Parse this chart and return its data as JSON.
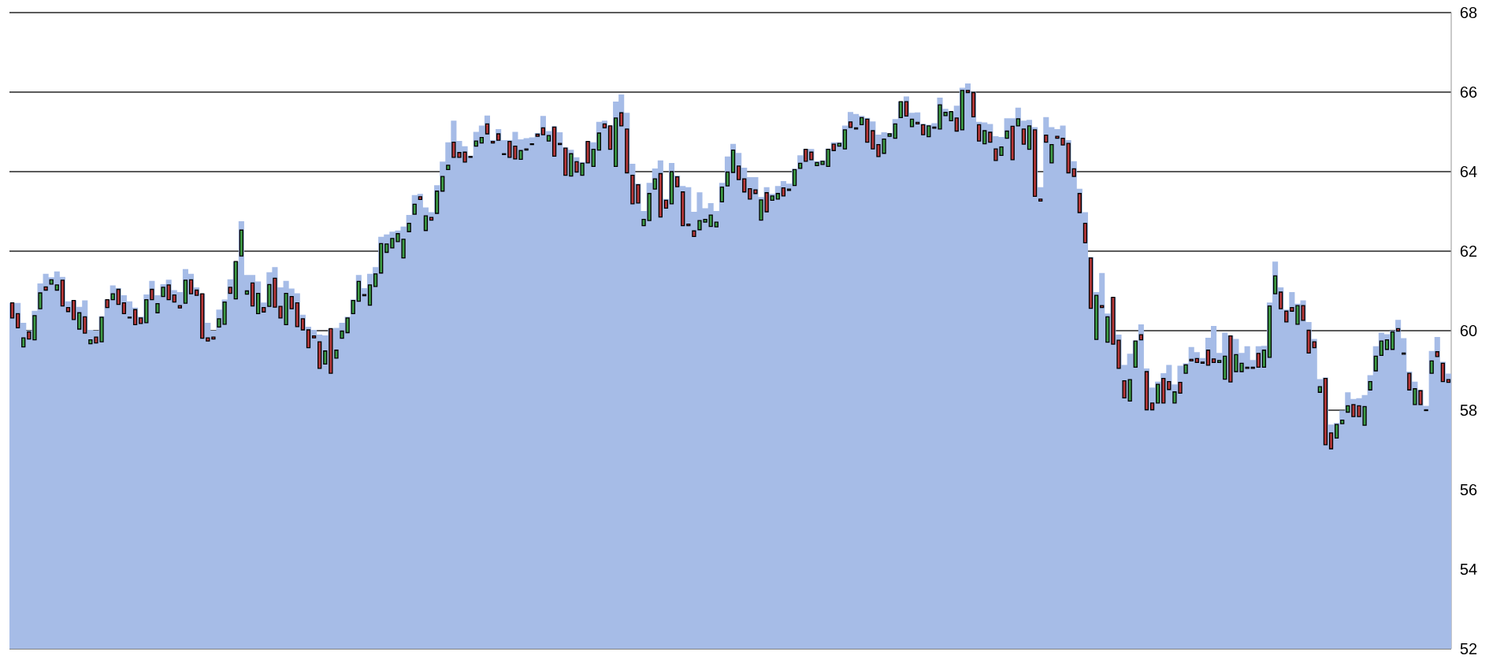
{
  "chart_data": {
    "type": "candlestick",
    "categories": [
      null,
      null,
      null,
      null,
      null,
      null,
      null,
      null,
      null,
      null,
      null,
      null,
      null,
      null,
      null,
      null,
      null,
      null,
      null,
      null,
      null,
      null,
      null,
      null,
      null,
      null,
      null,
      null,
      null,
      null,
      null,
      null,
      null,
      null,
      null,
      null,
      null,
      null,
      null,
      null,
      null,
      null,
      null,
      null,
      null,
      null,
      null,
      null,
      null,
      null,
      null,
      null,
      null,
      null,
      null,
      null,
      null,
      null,
      null,
      null,
      null,
      null,
      null,
      null,
      null,
      null,
      null,
      null,
      null,
      null,
      null,
      null,
      null,
      null,
      null,
      null,
      null,
      null,
      null,
      null,
      null,
      null,
      null,
      null,
      null,
      null,
      null,
      null,
      null,
      null,
      null,
      null,
      null,
      null,
      null,
      null,
      null,
      null,
      null,
      null,
      null,
      null,
      null,
      null,
      null,
      null,
      null,
      null,
      null,
      null,
      null,
      null,
      null,
      null,
      null,
      null,
      null,
      null,
      null,
      null,
      null,
      null,
      null,
      null,
      null,
      null,
      null,
      null,
      null,
      null,
      null,
      null,
      null,
      null,
      null,
      null,
      null,
      null,
      null,
      null,
      null,
      null,
      null,
      null,
      null,
      null,
      null,
      null,
      null,
      null,
      null,
      null,
      null,
      null,
      null,
      null,
      null,
      null,
      null,
      null,
      null,
      null,
      null,
      null,
      null,
      null,
      null,
      null,
      null,
      null,
      null,
      null,
      null,
      null,
      null,
      null,
      null,
      null,
      null,
      null,
      null,
      null,
      null,
      null,
      null,
      null,
      null,
      null,
      null,
      null,
      null,
      null,
      null,
      null,
      null,
      null,
      null,
      null,
      null,
      null,
      null,
      null,
      null,
      null,
      null,
      null,
      null,
      null,
      null,
      null,
      null,
      null,
      null,
      null,
      null,
      null,
      null,
      null,
      null,
      null,
      null,
      null,
      null,
      null,
      null,
      null,
      null,
      null,
      null,
      null,
      null,
      null,
      null,
      null,
      null,
      null,
      null,
      null,
      null,
      null,
      null,
      null,
      null,
      null,
      null,
      null,
      null,
      null,
      null,
      null,
      null,
      null,
      null,
      null,
      null,
      null,
      null,
      null
    ],
    "series": [
      {
        "type": "area",
        "color": "#a6bce7",
        "values": [
          60.7,
          60.7,
          60.2,
          60.0,
          60.5,
          61.19,
          61.43,
          61.34,
          61.49,
          61.35,
          60.74,
          60.76,
          60.6,
          60.76,
          60.02,
          60.0,
          60.36,
          60.78,
          61.14,
          61.07,
          60.89,
          60.74,
          60.58,
          60.35,
          60.91,
          61.25,
          60.89,
          61.17,
          61.28,
          61.02,
          60.97,
          61.55,
          61.43,
          61.09,
          60.93,
          60.2,
          60.0,
          60.53,
          60.78,
          61.29,
          61.74,
          62.75,
          61.4,
          61.4,
          61.24,
          60.71,
          61.47,
          61.6,
          61.09,
          61.25,
          61.06,
          60.94,
          60.4,
          60.1,
          60.02,
          59.9,
          59.88,
          60.05,
          60.07,
          60.2,
          60.35,
          60.78,
          61.4,
          61.07,
          61.43,
          61.6,
          62.36,
          62.42,
          62.49,
          62.52,
          62.62,
          62.91,
          63.41,
          63.44,
          63.1,
          62.98,
          63.66,
          64.25,
          64.74,
          65.28,
          64.77,
          64.64,
          64.4,
          65.0,
          65.16,
          65.41,
          64.79,
          65.07,
          64.79,
          64.79,
          65.0,
          64.81,
          64.84,
          64.86,
          64.97,
          65.4,
          65.02,
          65.14,
          64.99,
          64.61,
          64.55,
          64.36,
          64.24,
          64.76,
          64.74,
          65.25,
          65.28,
          65.16,
          65.76,
          65.94,
          65.48,
          64.2,
          63.7,
          63.01,
          63.72,
          64.08,
          64.28,
          63.31,
          64.22,
          63.9,
          63.64,
          63.61,
          62.99,
          63.48,
          63.08,
          63.21,
          63.01,
          63.72,
          64.38,
          64.7,
          64.47,
          64.1,
          63.86,
          63.86,
          63.36,
          63.61,
          63.44,
          63.64,
          63.76,
          63.7,
          64.07,
          64.41,
          64.57,
          64.57,
          64.26,
          64.28,
          64.58,
          64.74,
          64.74,
          65.16,
          65.5,
          65.45,
          65.4,
          65.35,
          65.26,
          64.93,
          64.99,
          64.97,
          65.32,
          65.76,
          65.89,
          65.48,
          65.49,
          65.2,
          65.18,
          65.22,
          65.86,
          65.58,
          65.51,
          65.66,
          66.11,
          66.22,
          66.01,
          65.25,
          65.24,
          65.2,
          64.89,
          64.87,
          65.34,
          65.34,
          65.61,
          65.28,
          65.3,
          65.12,
          63.61,
          65.37,
          65.12,
          65.07,
          65.16,
          64.79,
          64.26,
          63.57,
          62.98,
          61.85,
          60.97,
          61.45,
          60.43,
          60.84,
          59.9,
          59.14,
          59.42,
          59.75,
          60.16,
          59.05,
          58.57,
          58.72,
          58.93,
          59.14,
          58.65,
          59.12,
          59.18,
          59.59,
          59.46,
          59.31,
          59.82,
          60.12,
          59.44,
          59.95,
          59.88,
          59.79,
          59.44,
          59.61,
          59.26,
          59.61,
          59.62,
          60.71,
          61.74,
          61.09,
          60.53,
          60.97,
          60.68,
          60.76,
          60.22,
          59.79,
          58.78,
          58.82,
          57.64,
          57.68,
          57.99,
          58.45,
          58.28,
          58.3,
          58.38,
          58.88,
          59.61,
          59.95,
          59.91,
          60.0,
          60.27,
          59.81,
          58.97,
          58.72,
          58.51,
          58.11,
          59.49,
          59.84,
          59.22,
          58.92
        ]
      }
    ],
    "ohlc": [
      [
        60.7,
        60.7,
        60.32,
        60.32
      ],
      [
        60.43,
        60.43,
        60.07,
        60.07
      ],
      [
        59.59,
        59.82,
        59.59,
        59.82
      ],
      [
        59.97,
        59.97,
        59.79,
        59.79
      ],
      [
        59.77,
        60.38,
        59.77,
        60.38
      ],
      [
        60.55,
        60.95,
        60.55,
        60.95
      ],
      [
        61.1,
        61.1,
        61.02,
        61.02
      ],
      [
        61.17,
        61.28,
        61.17,
        61.28
      ],
      [
        61.02,
        61.15,
        61.02,
        61.15
      ],
      [
        61.27,
        61.27,
        60.62,
        60.62
      ],
      [
        60.58,
        60.58,
        60.48,
        60.48
      ],
      [
        60.76,
        60.76,
        60.28,
        60.28
      ],
      [
        60.04,
        60.45,
        60.04,
        60.45
      ],
      [
        60.35,
        60.35,
        59.94,
        59.94
      ],
      [
        59.67,
        59.77,
        59.67,
        59.77
      ],
      [
        59.84,
        59.84,
        59.69,
        59.69
      ],
      [
        59.72,
        60.34,
        59.72,
        60.34
      ],
      [
        60.78,
        60.78,
        60.58,
        60.58
      ],
      [
        60.78,
        60.93,
        60.78,
        60.93
      ],
      [
        61.04,
        61.04,
        60.66,
        60.66
      ],
      [
        60.7,
        60.7,
        60.43,
        60.43
      ],
      [
        60.34,
        60.34,
        60.32,
        60.32
      ],
      [
        60.53,
        60.53,
        60.15,
        60.15
      ],
      [
        60.32,
        60.32,
        60.18,
        60.18
      ],
      [
        60.2,
        60.78,
        60.2,
        60.78
      ],
      [
        61.04,
        61.04,
        60.78,
        60.78
      ],
      [
        60.45,
        60.68,
        60.45,
        60.68
      ],
      [
        60.86,
        61.09,
        60.86,
        61.09
      ],
      [
        61.15,
        61.15,
        60.78,
        60.78
      ],
      [
        60.9,
        60.9,
        60.72,
        60.72
      ],
      [
        60.63,
        60.63,
        60.57,
        60.57
      ],
      [
        60.69,
        61.27,
        60.69,
        61.27
      ],
      [
        61.28,
        61.28,
        60.93,
        60.93
      ],
      [
        61.02,
        61.02,
        60.89,
        60.89
      ],
      [
        60.93,
        60.93,
        59.81,
        59.81
      ],
      [
        59.82,
        59.82,
        59.74,
        59.74
      ],
      [
        59.84,
        59.84,
        59.79,
        59.79
      ],
      [
        60.09,
        60.3,
        60.09,
        60.3
      ],
      [
        60.16,
        60.72,
        60.16,
        60.72
      ],
      [
        61.09,
        61.09,
        60.94,
        60.94
      ],
      [
        60.8,
        61.74,
        60.8,
        61.74
      ],
      [
        61.88,
        62.53,
        61.88,
        62.53
      ],
      [
        60.92,
        61.0,
        60.92,
        61.0
      ],
      [
        61.2,
        61.2,
        60.62,
        60.62
      ],
      [
        60.43,
        60.94,
        60.43,
        60.94
      ],
      [
        60.58,
        60.58,
        60.47,
        60.47
      ],
      [
        60.61,
        61.16,
        60.61,
        61.16
      ],
      [
        61.32,
        61.32,
        60.59,
        60.59
      ],
      [
        60.61,
        60.61,
        60.32,
        60.32
      ],
      [
        60.15,
        60.94,
        60.15,
        60.94
      ],
      [
        60.86,
        60.86,
        60.55,
        60.55
      ],
      [
        60.7,
        60.7,
        60.1,
        60.1
      ],
      [
        60.3,
        60.3,
        60.02,
        60.02
      ],
      [
        60.02,
        60.02,
        59.57,
        59.57
      ],
      [
        59.87,
        59.87,
        59.82,
        59.82
      ],
      [
        59.72,
        59.72,
        59.05,
        59.05
      ],
      [
        59.16,
        59.49,
        59.16,
        59.49
      ],
      [
        60.05,
        60.05,
        58.93,
        58.93
      ],
      [
        59.31,
        59.51,
        59.31,
        59.51
      ],
      [
        59.81,
        59.99,
        59.81,
        59.99
      ],
      [
        59.95,
        60.32,
        59.95,
        60.32
      ],
      [
        60.43,
        60.76,
        60.43,
        60.76
      ],
      [
        60.74,
        61.24,
        60.74,
        61.24
      ],
      [
        60.91,
        60.91,
        60.88,
        60.88
      ],
      [
        60.64,
        61.15,
        60.64,
        61.15
      ],
      [
        61.11,
        61.43,
        61.11,
        61.43
      ],
      [
        61.45,
        62.19,
        61.45,
        62.19
      ],
      [
        61.97,
        62.18,
        61.97,
        62.18
      ],
      [
        62.08,
        62.32,
        62.08,
        62.32
      ],
      [
        62.24,
        62.44,
        62.24,
        62.44
      ],
      [
        61.83,
        62.3,
        61.83,
        62.3
      ],
      [
        62.49,
        62.7,
        62.49,
        62.7
      ],
      [
        62.93,
        63.18,
        62.93,
        63.18
      ],
      [
        63.37,
        63.37,
        63.3,
        63.3
      ],
      [
        62.52,
        62.89,
        62.52,
        62.89
      ],
      [
        62.85,
        62.85,
        62.78,
        62.78
      ],
      [
        62.95,
        63.51,
        62.95,
        63.51
      ],
      [
        63.51,
        63.88,
        63.51,
        63.88
      ],
      [
        64.05,
        64.16,
        64.05,
        64.16
      ],
      [
        64.74,
        64.74,
        64.36,
        64.36
      ],
      [
        64.48,
        64.48,
        64.36,
        64.36
      ],
      [
        64.49,
        64.49,
        64.24,
        64.24
      ],
      [
        64.38,
        64.38,
        64.36,
        64.36
      ],
      [
        64.64,
        64.77,
        64.64,
        64.77
      ],
      [
        64.72,
        64.86,
        64.72,
        64.86
      ],
      [
        65.2,
        65.2,
        64.95,
        64.95
      ],
      [
        64.76,
        64.76,
        64.72,
        64.72
      ],
      [
        64.95,
        64.95,
        64.79,
        64.79
      ],
      [
        64.45,
        64.45,
        64.43,
        64.43
      ],
      [
        64.76,
        64.76,
        64.36,
        64.36
      ],
      [
        64.64,
        64.64,
        64.32,
        64.32
      ],
      [
        64.31,
        64.53,
        64.31,
        64.53
      ],
      [
        64.57,
        64.57,
        64.54,
        64.54
      ],
      [
        64.7,
        64.7,
        64.68,
        64.68
      ],
      [
        64.94,
        64.94,
        64.89,
        64.89
      ],
      [
        65.1,
        65.1,
        64.93,
        64.93
      ],
      [
        64.77,
        64.91,
        64.77,
        64.91
      ],
      [
        65.12,
        65.12,
        64.39,
        64.39
      ],
      [
        64.71,
        64.71,
        64.68,
        64.68
      ],
      [
        64.59,
        64.59,
        63.91,
        63.91
      ],
      [
        63.89,
        64.45,
        63.89,
        64.45
      ],
      [
        64.25,
        64.25,
        63.99,
        63.99
      ],
      [
        63.91,
        64.21,
        63.91,
        64.21
      ],
      [
        64.76,
        64.76,
        64.22,
        64.22
      ],
      [
        64.13,
        64.56,
        64.13,
        64.56
      ],
      [
        64.54,
        64.97,
        64.54,
        64.97
      ],
      [
        65.2,
        65.2,
        65.1,
        65.1
      ],
      [
        65.15,
        65.15,
        64.56,
        64.56
      ],
      [
        64.13,
        65.35,
        64.13,
        65.35
      ],
      [
        65.48,
        65.48,
        65.15,
        65.15
      ],
      [
        65.07,
        65.07,
        63.97,
        63.97
      ],
      [
        63.91,
        63.91,
        63.19,
        63.19
      ],
      [
        63.67,
        63.67,
        63.21,
        63.21
      ],
      [
        62.64,
        62.8,
        62.64,
        62.8
      ],
      [
        62.77,
        63.45,
        62.77,
        63.45
      ],
      [
        63.56,
        63.82,
        63.56,
        63.82
      ],
      [
        63.95,
        63.95,
        62.86,
        62.86
      ],
      [
        63.28,
        63.28,
        63.08,
        63.08
      ],
      [
        63.19,
        64.0,
        63.19,
        64.0
      ],
      [
        63.87,
        63.87,
        63.62,
        63.62
      ],
      [
        63.49,
        63.49,
        62.64,
        62.64
      ],
      [
        62.68,
        62.68,
        62.64,
        62.64
      ],
      [
        62.51,
        62.51,
        62.37,
        62.37
      ],
      [
        62.54,
        62.77,
        62.54,
        62.77
      ],
      [
        62.73,
        62.8,
        62.73,
        62.8
      ],
      [
        62.62,
        62.91,
        62.62,
        62.91
      ],
      [
        62.61,
        62.73,
        62.61,
        62.73
      ],
      [
        63.24,
        63.61,
        63.24,
        63.61
      ],
      [
        63.64,
        63.99,
        63.64,
        63.99
      ],
      [
        63.98,
        64.54,
        63.98,
        64.54
      ],
      [
        64.14,
        64.14,
        63.8,
        63.8
      ],
      [
        63.82,
        63.82,
        63.49,
        63.49
      ],
      [
        63.57,
        63.57,
        63.31,
        63.31
      ],
      [
        63.54,
        63.54,
        63.45,
        63.45
      ],
      [
        62.78,
        63.29,
        62.78,
        63.29
      ],
      [
        63.47,
        63.47,
        62.99,
        62.99
      ],
      [
        63.28,
        63.39,
        63.28,
        63.39
      ],
      [
        63.31,
        63.45,
        63.31,
        63.45
      ],
      [
        63.59,
        63.59,
        63.39,
        63.39
      ],
      [
        63.53,
        63.56,
        63.53,
        63.56
      ],
      [
        63.65,
        64.05,
        63.65,
        64.05
      ],
      [
        64.08,
        64.21,
        64.08,
        64.21
      ],
      [
        64.56,
        64.56,
        64.26,
        64.26
      ],
      [
        64.49,
        64.49,
        64.3,
        64.3
      ],
      [
        64.15,
        64.23,
        64.15,
        64.23
      ],
      [
        64.18,
        64.26,
        64.18,
        64.26
      ],
      [
        64.13,
        64.56,
        64.13,
        64.56
      ],
      [
        64.69,
        64.69,
        64.53,
        64.53
      ],
      [
        64.64,
        64.71,
        64.64,
        64.71
      ],
      [
        64.57,
        65.05,
        64.57,
        65.05
      ],
      [
        65.25,
        65.25,
        65.11,
        65.11
      ],
      [
        65.1,
        65.1,
        65.07,
        65.07
      ],
      [
        65.18,
        65.36,
        65.18,
        65.36
      ],
      [
        65.32,
        65.32,
        64.74,
        64.74
      ],
      [
        65.03,
        65.03,
        64.57,
        64.57
      ],
      [
        64.68,
        64.68,
        64.38,
        64.38
      ],
      [
        64.46,
        64.82,
        64.46,
        64.82
      ],
      [
        64.89,
        64.95,
        64.89,
        64.95
      ],
      [
        64.84,
        65.2,
        64.84,
        65.2
      ],
      [
        65.36,
        65.76,
        65.36,
        65.76
      ],
      [
        65.76,
        65.76,
        65.4,
        65.4
      ],
      [
        65.13,
        65.32,
        65.13,
        65.32
      ],
      [
        65.24,
        65.24,
        65.2,
        65.2
      ],
      [
        65.18,
        65.18,
        64.93,
        64.93
      ],
      [
        64.88,
        65.15,
        64.88,
        65.15
      ],
      [
        65.12,
        65.12,
        65.09,
        65.09
      ],
      [
        65.07,
        65.68,
        65.07,
        65.68
      ],
      [
        65.41,
        65.49,
        65.41,
        65.49
      ],
      [
        65.28,
        65.51,
        65.28,
        65.51
      ],
      [
        65.35,
        65.35,
        65.02,
        65.02
      ],
      [
        65.05,
        66.04,
        65.05,
        66.04
      ],
      [
        66.04,
        66.04,
        65.99,
        65.99
      ],
      [
        65.99,
        65.99,
        65.38,
        65.38
      ],
      [
        65.18,
        65.18,
        64.77,
        64.77
      ],
      [
        64.7,
        65.03,
        64.7,
        65.03
      ],
      [
        64.99,
        64.99,
        64.74,
        64.74
      ],
      [
        64.57,
        64.57,
        64.28,
        64.28
      ],
      [
        64.41,
        64.62,
        64.41,
        64.62
      ],
      [
        64.84,
        65.02,
        64.84,
        65.02
      ],
      [
        65.14,
        65.14,
        64.3,
        64.3
      ],
      [
        65.15,
        65.33,
        65.15,
        65.33
      ],
      [
        65.07,
        65.07,
        64.69,
        64.69
      ],
      [
        64.56,
        65.15,
        64.56,
        65.15
      ],
      [
        65.05,
        65.05,
        63.38,
        63.38
      ],
      [
        63.31,
        63.31,
        63.26,
        63.26
      ],
      [
        64.92,
        64.92,
        64.74,
        64.74
      ],
      [
        64.22,
        64.68,
        64.22,
        64.68
      ],
      [
        64.89,
        64.89,
        64.84,
        64.84
      ],
      [
        64.84,
        64.84,
        64.67,
        64.67
      ],
      [
        64.71,
        64.71,
        63.97,
        63.97
      ],
      [
        64.07,
        64.07,
        63.88,
        63.88
      ],
      [
        63.45,
        63.45,
        62.97,
        62.97
      ],
      [
        62.7,
        62.7,
        62.21,
        62.21
      ],
      [
        61.83,
        61.83,
        60.56,
        60.56
      ],
      [
        59.78,
        60.89,
        59.78,
        60.89
      ],
      [
        60.63,
        60.63,
        60.58,
        60.58
      ],
      [
        59.71,
        60.35,
        59.71,
        60.35
      ],
      [
        60.84,
        60.84,
        59.66,
        59.66
      ],
      [
        59.76,
        59.76,
        59.05,
        59.05
      ],
      [
        58.74,
        58.74,
        58.31,
        58.31
      ],
      [
        58.23,
        58.77,
        58.23,
        58.77
      ],
      [
        59.08,
        59.74,
        59.08,
        59.74
      ],
      [
        59.9,
        59.9,
        59.77,
        59.77
      ],
      [
        58.97,
        58.97,
        58.01,
        58.01
      ],
      [
        58.18,
        58.18,
        58.01,
        58.01
      ],
      [
        58.18,
        58.65,
        58.18,
        58.65
      ],
      [
        58.8,
        58.8,
        58.18,
        58.18
      ],
      [
        58.72,
        58.72,
        58.52,
        58.52
      ],
      [
        58.18,
        58.46,
        58.18,
        58.46
      ],
      [
        58.7,
        58.7,
        58.43,
        58.43
      ],
      [
        58.93,
        59.14,
        58.93,
        59.14
      ],
      [
        59.28,
        59.28,
        59.24,
        59.24
      ],
      [
        59.3,
        59.3,
        59.2,
        59.2
      ],
      [
        59.21,
        59.21,
        59.18,
        59.18
      ],
      [
        59.51,
        59.51,
        59.13,
        59.13
      ],
      [
        59.29,
        59.29,
        59.2,
        59.2
      ],
      [
        59.2,
        59.25,
        59.2,
        59.25
      ],
      [
        58.78,
        59.36,
        58.78,
        59.36
      ],
      [
        59.87,
        59.87,
        58.71,
        58.71
      ],
      [
        58.97,
        59.4,
        58.97,
        59.4
      ],
      [
        58.97,
        59.18,
        58.97,
        59.18
      ],
      [
        59.08,
        59.08,
        59.05,
        59.05
      ],
      [
        59.08,
        59.08,
        59.05,
        59.05
      ],
      [
        59.43,
        59.43,
        59.08,
        59.08
      ],
      [
        59.08,
        59.51,
        59.08,
        59.51
      ],
      [
        59.33,
        60.62,
        59.33,
        60.62
      ],
      [
        60.93,
        61.38,
        60.93,
        61.38
      ],
      [
        60.97,
        60.97,
        60.55,
        60.55
      ],
      [
        60.49,
        60.49,
        60.22,
        60.22
      ],
      [
        60.58,
        60.58,
        60.49,
        60.49
      ],
      [
        60.16,
        60.63,
        60.16,
        60.63
      ],
      [
        60.63,
        60.63,
        60.26,
        60.26
      ],
      [
        60.01,
        60.01,
        59.44,
        59.44
      ],
      [
        59.72,
        59.72,
        59.57,
        59.57
      ],
      [
        58.45,
        58.59,
        58.45,
        58.59
      ],
      [
        58.8,
        58.8,
        57.13,
        57.13
      ],
      [
        57.43,
        57.43,
        57.03,
        57.03
      ],
      [
        57.3,
        57.64,
        57.3,
        57.64
      ],
      [
        57.66,
        57.75,
        57.66,
        57.75
      ],
      [
        57.95,
        58.11,
        57.95,
        58.11
      ],
      [
        58.14,
        58.14,
        57.84,
        57.84
      ],
      [
        58.11,
        58.11,
        57.84,
        57.84
      ],
      [
        57.62,
        58.09,
        57.62,
        58.09
      ],
      [
        58.51,
        58.72,
        58.51,
        58.72
      ],
      [
        58.99,
        59.36,
        58.99,
        59.36
      ],
      [
        59.38,
        59.74,
        59.38,
        59.74
      ],
      [
        59.53,
        59.77,
        59.53,
        59.77
      ],
      [
        59.53,
        59.97,
        59.53,
        59.97
      ],
      [
        60.05,
        60.05,
        59.99,
        59.99
      ],
      [
        59.44,
        59.44,
        59.41,
        59.41
      ],
      [
        58.93,
        58.93,
        58.51,
        58.51
      ],
      [
        58.14,
        58.54,
        58.14,
        58.54
      ],
      [
        58.49,
        58.49,
        58.14,
        58.14
      ],
      [
        58.01,
        58.01,
        57.99,
        57.99
      ],
      [
        58.93,
        59.24,
        58.93,
        59.24
      ],
      [
        59.47,
        59.47,
        59.35,
        59.35
      ],
      [
        59.18,
        59.18,
        58.72,
        58.72
      ],
      [
        58.77,
        58.77,
        58.7,
        58.7
      ]
    ],
    "ylim": [
      52,
      68
    ],
    "yticks": [
      52,
      54,
      56,
      58,
      60,
      62,
      64,
      66,
      68
    ],
    "grid": "y"
  }
}
